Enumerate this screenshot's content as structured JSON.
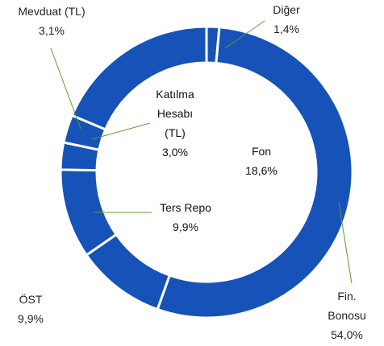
{
  "chart_data": {
    "type": "donut",
    "categories": [
      "Diğer",
      "Fin. Bonosu",
      "ÖST",
      "Ters Repo",
      "Katılma Hesabı (TL)",
      "Mevduat (TL)",
      "Fon"
    ],
    "values": [
      1.4,
      54.0,
      9.9,
      9.9,
      3.0,
      3.1,
      18.6
    ],
    "value_labels": [
      "1,4%",
      "54,0%",
      "9,9%",
      "9,9%",
      "3,0%",
      "3,1%",
      "18,6%"
    ],
    "color": "#1652b8"
  }
}
